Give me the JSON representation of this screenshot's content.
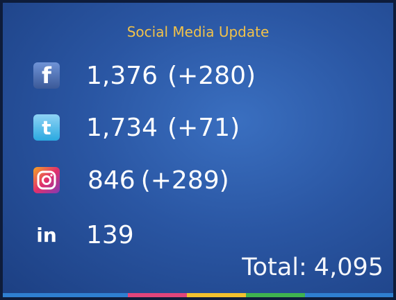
{
  "header": {
    "title": "Social Media Update"
  },
  "rows": [
    {
      "network": "facebook",
      "icon": "f",
      "count": "1,376",
      "change": "(+280)"
    },
    {
      "network": "twitter",
      "icon": "t",
      "count": "1,734",
      "change": "(+71)"
    },
    {
      "network": "instagram",
      "count": "846",
      "change": "(+289)"
    },
    {
      "network": "linkedin",
      "icon": "in",
      "count": "139"
    }
  ],
  "total": {
    "label": "Total:",
    "value": "4,095"
  }
}
